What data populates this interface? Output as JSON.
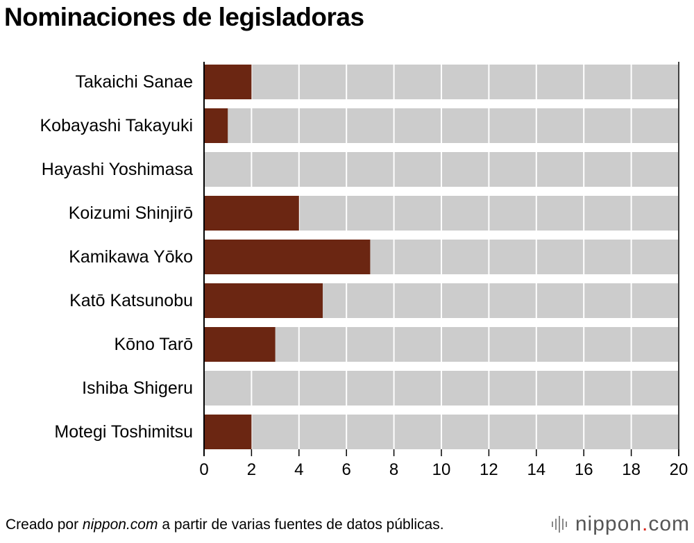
{
  "title": "Nominaciones de legisladoras",
  "footer": {
    "prefix": "Creado por ",
    "source": "nippon.com",
    "suffix": " a partir de varias fuentes de datos públicas."
  },
  "logo": {
    "name": "nippon",
    "dot": ".",
    "tld": "com"
  },
  "colors": {
    "bar": "#6b2612",
    "track": "#cccccc",
    "axis": "#000000"
  },
  "chart_data": {
    "type": "bar",
    "orientation": "horizontal",
    "categories": [
      "Takaichi Sanae",
      "Kobayashi Takayuki",
      "Hayashi Yoshimasa",
      "Koizumi Shinjirō",
      "Kamikawa Yōko",
      "Katō Katsunobu",
      "Kōno Tarō",
      "Ishiba Shigeru",
      "Motegi Toshimitsu"
    ],
    "values": [
      2,
      1,
      0,
      4,
      7,
      5,
      3,
      0,
      2
    ],
    "xlim": [
      0,
      20
    ],
    "xticks": [
      "0",
      "2",
      "4",
      "6",
      "8",
      "10",
      "12",
      "14",
      "16",
      "18",
      "20"
    ],
    "xlabel": "",
    "ylabel": "",
    "grid": true
  }
}
